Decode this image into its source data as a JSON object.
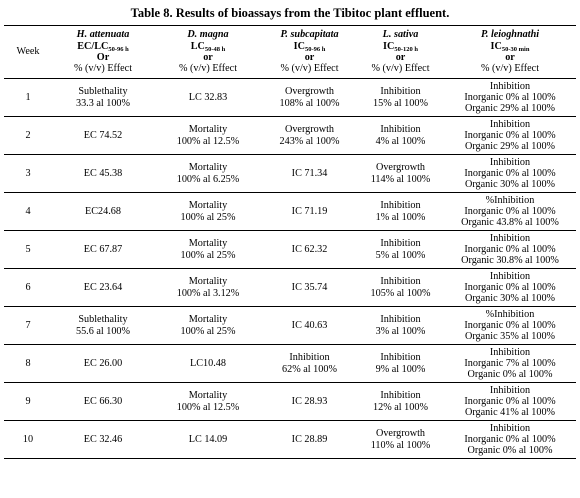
{
  "title": "Table 8. Results of bioassays from the Tibitoc plant effluent.",
  "header": {
    "week": "Week",
    "cols": [
      {
        "species": "H. attenuata",
        "metric": "EC/LC",
        "sub": "50-96 h",
        "or": "Or",
        "units": "% (v/v)  Effect"
      },
      {
        "species": "D. magna",
        "metric": "LC",
        "sub": "50-48 h",
        "or": "or",
        "units": "% (v/v)  Effect"
      },
      {
        "species": "P. subcapitata",
        "metric": "IC",
        "sub": "50-96 h",
        "or": "or",
        "units": "% (v/v)  Effect"
      },
      {
        "species": "L. sativa",
        "metric": "IC",
        "sub": "50-120 h",
        "or": "or",
        "units": "% (v/v)  Effect"
      },
      {
        "species": "P. leioghnathi",
        "metric": "IC",
        "sub": "50-30 min",
        "or": "or",
        "units": "% (v/v)  Effect"
      }
    ]
  },
  "rows": [
    {
      "week": "1",
      "c1": [
        "Sublethality",
        "33.3 al 100%"
      ],
      "c2": [
        "LC 32.83"
      ],
      "c3": [
        "Overgrowth",
        "108% al 100%"
      ],
      "c4": [
        "Inhibition",
        "15% al 100%"
      ],
      "c5": [
        "Inhibition",
        "Inorganic 0% al 100%",
        "Organic 29% al 100%"
      ]
    },
    {
      "week": "2",
      "c1": [
        "EC 74.52"
      ],
      "c2": [
        "Mortality",
        "100% al 12.5%"
      ],
      "c3": [
        "Overgrowth",
        "243% al 100%"
      ],
      "c4": [
        "Inhibition",
        "4% al 100%"
      ],
      "c5": [
        "Inhibition",
        "Inorganic 0% al 100%",
        "Organic 29% al 100%"
      ]
    },
    {
      "week": "3",
      "c1": [
        "EC 45.38"
      ],
      "c2": [
        "Mortality",
        "100% al 6.25%"
      ],
      "c3": [
        "IC 71.34"
      ],
      "c4": [
        "Overgrowth",
        "114% al 100%"
      ],
      "c5": [
        "Inhibition",
        "Inorganic 0% al 100%",
        "Organic 30% al 100%"
      ]
    },
    {
      "week": "4",
      "c1": [
        "EC24.68"
      ],
      "c2": [
        "Mortality",
        "100% al 25%"
      ],
      "c3": [
        "IC  71.19"
      ],
      "c4": [
        "Inhibition",
        "1% al 100%"
      ],
      "c5": [
        "%Inhibition",
        "Inorganic 0% al 100%",
        "Organic 43.8% al 100%"
      ]
    },
    {
      "week": "5",
      "c1": [
        "EC 67.87"
      ],
      "c2": [
        "Mortality",
        "100% al 25%"
      ],
      "c3": [
        "IC 62.32"
      ],
      "c4": [
        "Inhibition",
        "5% al 100%"
      ],
      "c5": [
        "Inhibition",
        "Inorganic 0% al 100%",
        "Organic 30.8% al 100%"
      ]
    },
    {
      "week": "6",
      "c1": [
        "EC 23.64"
      ],
      "c2": [
        "Mortality",
        "100% al 3.12%"
      ],
      "c3": [
        "IC 35.74"
      ],
      "c4": [
        "Inhibition",
        "105% al 100%"
      ],
      "c5": [
        "Inhibition",
        "Inorganic 0% al 100%",
        "Organic 30% al 100%"
      ]
    },
    {
      "week": "7",
      "c1": [
        "Sublethality",
        "55.6 al 100%"
      ],
      "c2": [
        "Mortality",
        "100% al 25%"
      ],
      "c3": [
        "IC 40.63"
      ],
      "c4": [
        "Inhibition",
        "3% al 100%"
      ],
      "c5": [
        "%Inhibition",
        "Inorganic 0% al 100%",
        "Organic 35% al 100%"
      ]
    },
    {
      "week": "8",
      "c1": [
        "EC 26.00"
      ],
      "c2": [
        "LC10.48"
      ],
      "c3": [
        "Inhibition",
        "62% al 100%"
      ],
      "c4": [
        "Inhibition",
        "9% al 100%"
      ],
      "c5": [
        "Inhibition",
        "Inorganic 7% al 100%",
        "Organic 0% al 100%"
      ]
    },
    {
      "week": "9",
      "c1": [
        "EC 66.30"
      ],
      "c2": [
        "Mortality",
        "100% al 12.5%"
      ],
      "c3": [
        "IC 28.93"
      ],
      "c4": [
        "Inhibition",
        "12% al 100%"
      ],
      "c5": [
        "Inhibition",
        "Inorganic 0% al 100%",
        "Organic 41% al 100%"
      ]
    },
    {
      "week": "10",
      "c1": [
        "EC 32.46"
      ],
      "c2": [
        "LC 14.09"
      ],
      "c3": [
        "IC 28.89"
      ],
      "c4": [
        "Overgrowth",
        "110% al 100%"
      ],
      "c5": [
        "Inhibition",
        "Inorganic 0% al 100%",
        "Organic 0% al 100%"
      ]
    }
  ]
}
